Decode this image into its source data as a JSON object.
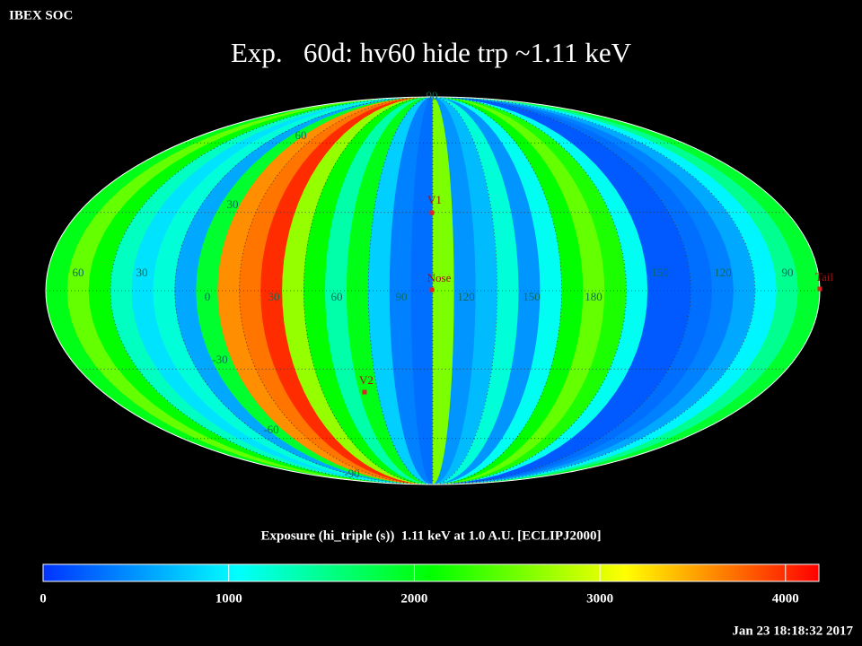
{
  "header": {
    "corner": "IBEX SOC",
    "title": "Exp.   60d: hv60 hide trp ~1.11 keV",
    "timestamp": "Jan 23 18:18:32 2017"
  },
  "chart_data": {
    "type": "mollweide",
    "strip_values": [
      2000,
      2500,
      2100,
      1300,
      900,
      1200,
      600,
      1900,
      3600,
      3700,
      4000,
      2700,
      2100,
      1400,
      2000,
      800,
      400,
      300,
      2600,
      500,
      700,
      1200,
      500,
      1100,
      2100,
      2500,
      2200,
      1100,
      200,
      200,
      300,
      400,
      600,
      1000,
      1500,
      1900
    ],
    "clim": [
      0,
      4180
    ],
    "colormap": [
      "#0033ff",
      "#00ffff",
      "#00ff00",
      "#ffff00",
      "#ff0000"
    ],
    "lon_labels": [
      "60",
      "30",
      "0",
      "30",
      "60",
      "90",
      "120",
      "150",
      "180",
      "150",
      "120",
      "90"
    ],
    "lat_labels": [
      "90",
      "60",
      "30",
      "-30",
      "-60",
      "-90"
    ],
    "markers": [
      "V1",
      "Nose",
      "V2",
      "Tail"
    ],
    "colorbar": {
      "title": "Exposure (hi_triple (s))  1.11 keV at 1.0 A.U. [ECLIPJ2000]",
      "ticks": [
        0,
        1000,
        2000,
        3000,
        4000
      ]
    }
  }
}
